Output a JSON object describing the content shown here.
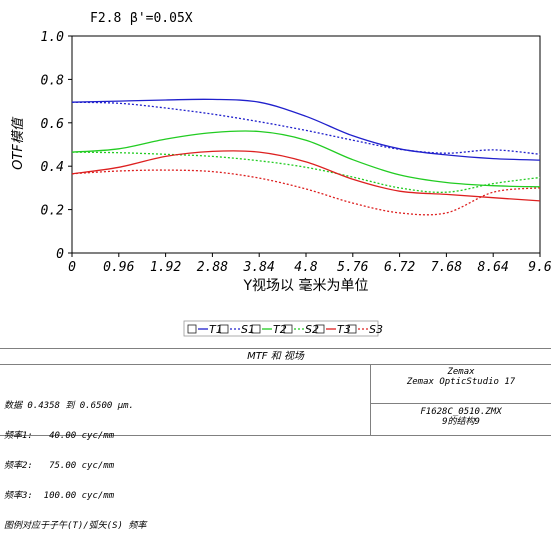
{
  "header": {
    "fnum": "F2.8",
    "beta": "β'=0.05X"
  },
  "chart_data": {
    "type": "line",
    "title": "MTF 和 视场",
    "xlabel": "Y视场以  毫米为单位",
    "ylabel": "OTF模值",
    "xlim": [
      0,
      9.6
    ],
    "ylim": [
      0,
      1.0
    ],
    "x_ticks": [
      "0",
      "0.96",
      "1.92",
      "2.88",
      "3.84",
      "4.8",
      "5.76",
      "6.72",
      "7.68",
      "8.64",
      "9.6"
    ],
    "y_ticks": [
      "0",
      "0.2",
      "0.4",
      "0.6",
      "0.8",
      "1.0"
    ],
    "grid": false,
    "legend_position": "bottom",
    "series": [
      {
        "name": "T1",
        "color": "#2020cc",
        "dash": "solid",
        "x": [
          0,
          0.96,
          1.92,
          2.88,
          3.84,
          4.8,
          5.76,
          6.72,
          7.68,
          8.64,
          9.6
        ],
        "y": [
          0.695,
          0.7,
          0.705,
          0.708,
          0.695,
          0.63,
          0.54,
          0.48,
          0.452,
          0.435,
          0.428
        ]
      },
      {
        "name": "S1",
        "color": "#2020cc",
        "dash": "dotted",
        "x": [
          0,
          0.96,
          1.92,
          2.88,
          3.84,
          4.8,
          5.76,
          6.72,
          7.68,
          8.64,
          9.6
        ],
        "y": [
          0.695,
          0.69,
          0.668,
          0.64,
          0.605,
          0.565,
          0.52,
          0.478,
          0.46,
          0.475,
          0.455
        ]
      },
      {
        "name": "T2",
        "color": "#22cc22",
        "dash": "solid",
        "x": [
          0,
          0.96,
          1.92,
          2.88,
          3.84,
          4.8,
          5.76,
          6.72,
          7.68,
          8.64,
          9.6
        ],
        "y": [
          0.465,
          0.48,
          0.525,
          0.555,
          0.56,
          0.52,
          0.43,
          0.36,
          0.325,
          0.31,
          0.305
        ]
      },
      {
        "name": "S2",
        "color": "#22cc22",
        "dash": "dotted",
        "x": [
          0,
          0.96,
          1.92,
          2.88,
          3.84,
          4.8,
          5.76,
          6.72,
          7.68,
          8.64,
          9.6
        ],
        "y": [
          0.465,
          0.462,
          0.455,
          0.445,
          0.425,
          0.395,
          0.35,
          0.3,
          0.28,
          0.32,
          0.348
        ]
      },
      {
        "name": "T3",
        "color": "#dd2020",
        "dash": "solid",
        "x": [
          0,
          0.96,
          1.92,
          2.88,
          3.84,
          4.8,
          5.76,
          6.72,
          7.68,
          8.64,
          9.6
        ],
        "y": [
          0.365,
          0.395,
          0.445,
          0.468,
          0.465,
          0.42,
          0.34,
          0.285,
          0.27,
          0.255,
          0.24
        ]
      },
      {
        "name": "S3",
        "color": "#dd2020",
        "dash": "dotted",
        "x": [
          0,
          0.96,
          1.92,
          2.88,
          3.84,
          4.8,
          5.76,
          6.72,
          7.68,
          8.64,
          9.6
        ],
        "y": [
          0.365,
          0.378,
          0.382,
          0.375,
          0.345,
          0.295,
          0.23,
          0.185,
          0.185,
          0.28,
          0.3
        ]
      }
    ]
  },
  "info": {
    "title": "MTF 和 视场",
    "lines": [
      "数据 0.4358 到 0.6500 μm.",
      "频率1:   40.00 cyc/mm",
      "频率2:   75.00 cyc/mm",
      "频率3:  100.00 cyc/mm",
      "图例对应于子午(T)/弧矢(S) 频率"
    ],
    "vendor": "Zemax",
    "product": "Zemax OpticStudio 17",
    "file": "F1628C_0510.ZMX",
    "config": "9的结构9"
  }
}
